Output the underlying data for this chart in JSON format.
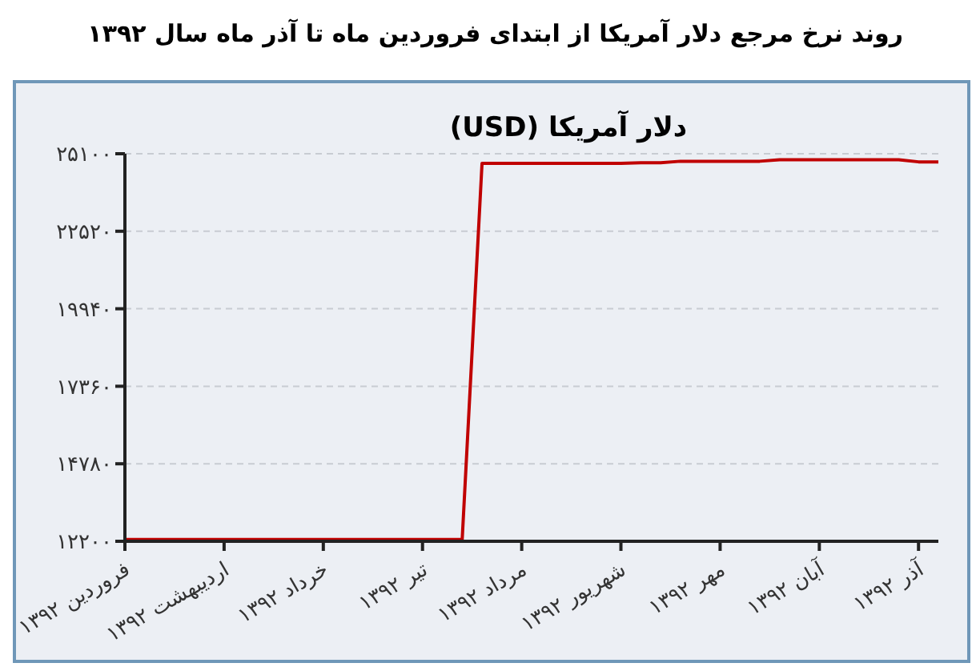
{
  "chart_data": {
    "type": "line",
    "title": "روند نرخ مرجع دلار آمریکا  از ابتدای فروردین ماه تا آذر ماه سال ۱۳۹۲",
    "subtitle": "دلار آمریکا (USD)",
    "categories": [
      "فروردین ۱۳۹۲",
      null,
      null,
      null,
      null,
      "اردیبهشت ۱۳۹۲",
      null,
      null,
      null,
      null,
      "خرداد ۱۳۹۲",
      null,
      null,
      null,
      null,
      "تیر ۱۳۹۲",
      null,
      null,
      null,
      null,
      "مرداد ۱۳۹۲",
      null,
      null,
      null,
      null,
      "شهریور ۱۳۹۲",
      null,
      null,
      null,
      null,
      "مهر ۱۳۹۲",
      null,
      null,
      null,
      null,
      "آبان ۱۳۹۲",
      null,
      null,
      null,
      null,
      "آذر ۱۳۹۲",
      null
    ],
    "series": [
      {
        "color": "#c00000",
        "values": [
          12260,
          12260,
          12260,
          12260,
          12260,
          12260,
          12260,
          12260,
          12260,
          12260,
          12260,
          12260,
          12260,
          12260,
          12260,
          12260,
          12260,
          12260,
          24780,
          24780,
          24780,
          24780,
          24780,
          24780,
          24780,
          24780,
          24800,
          24800,
          24850,
          24850,
          24850,
          24850,
          24850,
          24900,
          24900,
          24900,
          24900,
          24900,
          24900,
          24900,
          24830,
          24830
        ]
      }
    ],
    "ylim": [
      12200,
      25100
    ],
    "yticks": [
      {
        "value": 12200,
        "label": "۱۲۲۰۰"
      },
      {
        "value": 14780,
        "label": "۱۴۷۸۰"
      },
      {
        "value": 17360,
        "label": "۱۷۳۶۰"
      },
      {
        "value": 19940,
        "label": "۱۹۹۴۰"
      },
      {
        "value": 22520,
        "label": "۲۲۵۲۰"
      },
      {
        "value": 25100,
        "label": "۲۵۱۰۰"
      }
    ],
    "grid": "y",
    "marker": "none",
    "line_style": "solid",
    "legend": false
  }
}
